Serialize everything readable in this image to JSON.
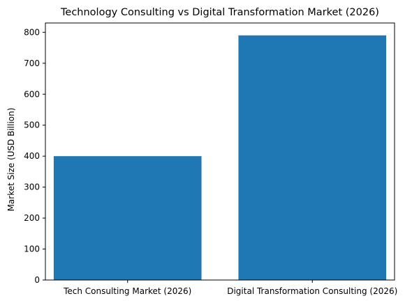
{
  "chart_data": {
    "type": "bar",
    "title": "Technology Consulting vs Digital Transformation Market (2026)",
    "xlabel": "",
    "ylabel": "Market Size (USD Billion)",
    "categories": [
      "Tech Consulting Market (2026)",
      "Digital Transformation Consulting (2026)"
    ],
    "values": [
      400,
      790
    ],
    "ylim": [
      0,
      830
    ],
    "yticks": [
      0,
      100,
      200,
      300,
      400,
      500,
      600,
      700,
      800
    ],
    "grid": false,
    "bar_color": "#1f77b4"
  }
}
